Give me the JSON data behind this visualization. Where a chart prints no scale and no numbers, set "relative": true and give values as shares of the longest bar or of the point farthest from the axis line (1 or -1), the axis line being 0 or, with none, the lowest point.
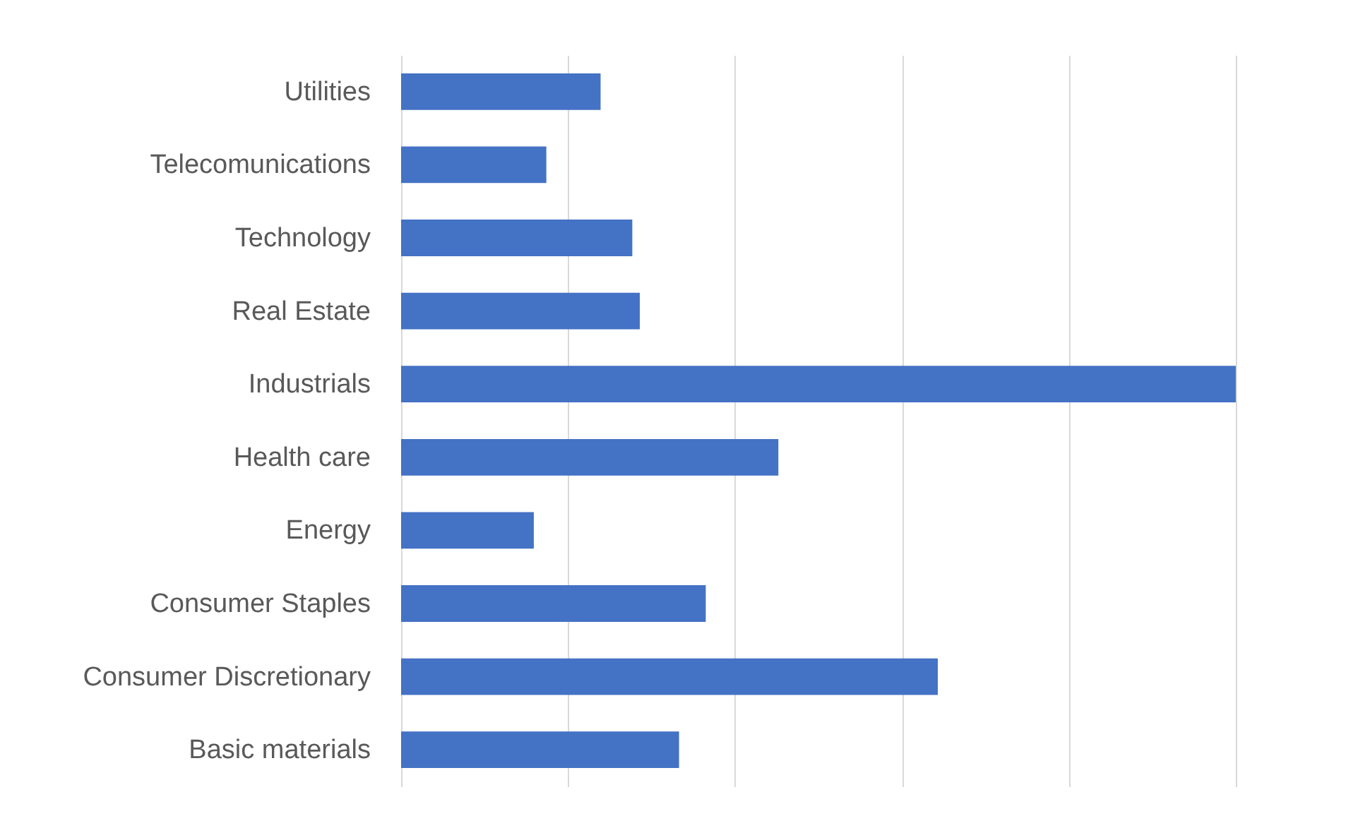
{
  "chart_data": {
    "type": "bar",
    "orientation": "horizontal",
    "relative": true,
    "grid": "x",
    "color": "#4472c4",
    "categories": [
      "Utilities",
      "Telecomunications",
      "Technology",
      "Real Estate",
      "Industrials",
      "Health care",
      "Energy",
      "Consumer Staples",
      "Consumer Discretionary",
      "Basic materials"
    ],
    "values": [
      0.239,
      0.174,
      0.277,
      0.286,
      1,
      0.452,
      0.159,
      0.365,
      0.643,
      0.333
    ]
  }
}
